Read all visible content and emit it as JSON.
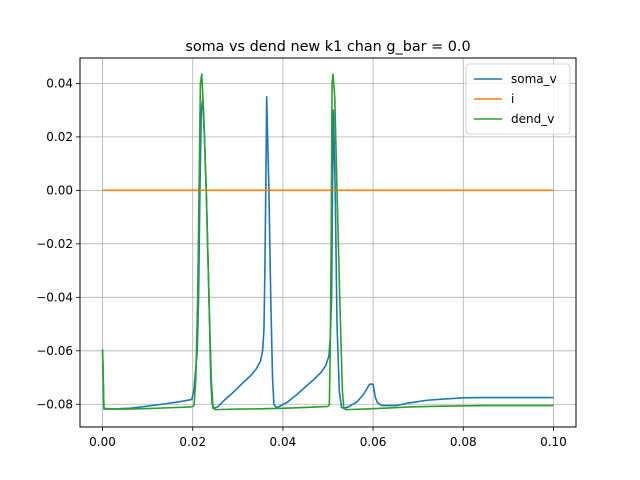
{
  "chart_data": {
    "type": "line",
    "title": "soma vs dend new k1 chan g_bar = 0.0",
    "xlabel": "",
    "ylabel": "",
    "xlim": [
      -0.005,
      0.105
    ],
    "ylim": [
      -0.0885,
      0.0495
    ],
    "xticks": [
      0.0,
      0.02,
      0.04,
      0.06,
      0.08,
      0.1
    ],
    "xtick_labels": [
      "0.00",
      "0.02",
      "0.04",
      "0.06",
      "0.08",
      "0.10"
    ],
    "yticks": [
      -0.08,
      -0.06,
      -0.04,
      -0.02,
      0.0,
      0.02,
      0.04
    ],
    "ytick_labels": [
      "−0.08",
      "−0.06",
      "−0.04",
      "−0.02",
      "0.00",
      "0.02",
      "0.04"
    ],
    "grid": true,
    "legend_position": "top-right",
    "series": [
      {
        "name": "soma_v",
        "color": "#1f77b4",
        "points": [
          [
            0.0,
            -0.0595
          ],
          [
            0.0003,
            -0.0815
          ],
          [
            0.002,
            -0.0818
          ],
          [
            0.006,
            -0.0815
          ],
          [
            0.01,
            -0.0807
          ],
          [
            0.014,
            -0.0798
          ],
          [
            0.018,
            -0.0788
          ],
          [
            0.0198,
            -0.0782
          ],
          [
            0.0203,
            -0.074
          ],
          [
            0.021,
            -0.06
          ],
          [
            0.0213,
            -0.04
          ],
          [
            0.0216,
            0.0
          ],
          [
            0.0219,
            0.03
          ],
          [
            0.0222,
            0.034
          ],
          [
            0.0226,
            0.02
          ],
          [
            0.023,
            0.0
          ],
          [
            0.0236,
            -0.04
          ],
          [
            0.024,
            -0.07
          ],
          [
            0.0243,
            -0.08
          ],
          [
            0.0248,
            -0.0815
          ],
          [
            0.0255,
            -0.081
          ],
          [
            0.027,
            -0.0785
          ],
          [
            0.029,
            -0.0755
          ],
          [
            0.031,
            -0.0722
          ],
          [
            0.033,
            -0.069
          ],
          [
            0.034,
            -0.067
          ],
          [
            0.035,
            -0.064
          ],
          [
            0.0355,
            -0.06
          ],
          [
            0.0358,
            -0.052
          ],
          [
            0.036,
            -0.03
          ],
          [
            0.0362,
            0.0
          ],
          [
            0.0364,
            0.035
          ],
          [
            0.0366,
            0.02
          ],
          [
            0.0369,
            0.0
          ],
          [
            0.0373,
            -0.04
          ],
          [
            0.0377,
            -0.07
          ],
          [
            0.038,
            -0.08
          ],
          [
            0.0385,
            -0.0812
          ],
          [
            0.039,
            -0.081
          ],
          [
            0.041,
            -0.0792
          ],
          [
            0.043,
            -0.0765
          ],
          [
            0.045,
            -0.0735
          ],
          [
            0.047,
            -0.0705
          ],
          [
            0.0485,
            -0.068
          ],
          [
            0.0495,
            -0.0655
          ],
          [
            0.0502,
            -0.062
          ],
          [
            0.0505,
            -0.055
          ],
          [
            0.0508,
            -0.04
          ],
          [
            0.051,
            0.0
          ],
          [
            0.0512,
            0.03
          ],
          [
            0.0516,
            0.0
          ],
          [
            0.052,
            -0.05
          ],
          [
            0.0525,
            -0.075
          ],
          [
            0.053,
            -0.0812
          ],
          [
            0.0535,
            -0.0815
          ],
          [
            0.0545,
            -0.081
          ],
          [
            0.0565,
            -0.079
          ],
          [
            0.058,
            -0.076
          ],
          [
            0.0592,
            -0.0725
          ],
          [
            0.06,
            -0.0725
          ],
          [
            0.0605,
            -0.0775
          ],
          [
            0.061,
            -0.0795
          ],
          [
            0.062,
            -0.0805
          ],
          [
            0.065,
            -0.0805
          ],
          [
            0.068,
            -0.0795
          ],
          [
            0.072,
            -0.0785
          ],
          [
            0.076,
            -0.078
          ],
          [
            0.08,
            -0.0776
          ],
          [
            0.085,
            -0.0775
          ],
          [
            0.09,
            -0.0775
          ],
          [
            0.095,
            -0.0775
          ],
          [
            0.1,
            -0.0775
          ]
        ]
      },
      {
        "name": "i",
        "color": "#ff7f0e",
        "points": [
          [
            0.0,
            0.0
          ],
          [
            0.1,
            0.0
          ]
        ]
      },
      {
        "name": "dend_v",
        "color": "#2ca02c",
        "points": [
          [
            0.0,
            -0.0595
          ],
          [
            0.0003,
            -0.0818
          ],
          [
            0.005,
            -0.0818
          ],
          [
            0.01,
            -0.0816
          ],
          [
            0.015,
            -0.0813
          ],
          [
            0.0195,
            -0.081
          ],
          [
            0.0203,
            -0.0805
          ],
          [
            0.0207,
            -0.07
          ],
          [
            0.0211,
            -0.04
          ],
          [
            0.0214,
            0.0
          ],
          [
            0.0217,
            0.04
          ],
          [
            0.022,
            0.0435
          ],
          [
            0.0224,
            0.03
          ],
          [
            0.023,
            0.0
          ],
          [
            0.0236,
            -0.04
          ],
          [
            0.0241,
            -0.07
          ],
          [
            0.0245,
            -0.0815
          ],
          [
            0.025,
            -0.082
          ],
          [
            0.03,
            -0.0818
          ],
          [
            0.035,
            -0.0817
          ],
          [
            0.04,
            -0.0815
          ],
          [
            0.045,
            -0.0812
          ],
          [
            0.05,
            -0.0808
          ],
          [
            0.0503,
            -0.08
          ],
          [
            0.0505,
            -0.06
          ],
          [
            0.0507,
            -0.02
          ],
          [
            0.0509,
            0.04
          ],
          [
            0.0511,
            0.0435
          ],
          [
            0.0515,
            0.035
          ],
          [
            0.052,
            0.0
          ],
          [
            0.0526,
            -0.04
          ],
          [
            0.0532,
            -0.075
          ],
          [
            0.0535,
            -0.0815
          ],
          [
            0.054,
            -0.082
          ],
          [
            0.058,
            -0.0818
          ],
          [
            0.062,
            -0.0815
          ],
          [
            0.068,
            -0.081
          ],
          [
            0.075,
            -0.0807
          ],
          [
            0.085,
            -0.0805
          ],
          [
            0.1,
            -0.0805
          ]
        ]
      }
    ]
  }
}
